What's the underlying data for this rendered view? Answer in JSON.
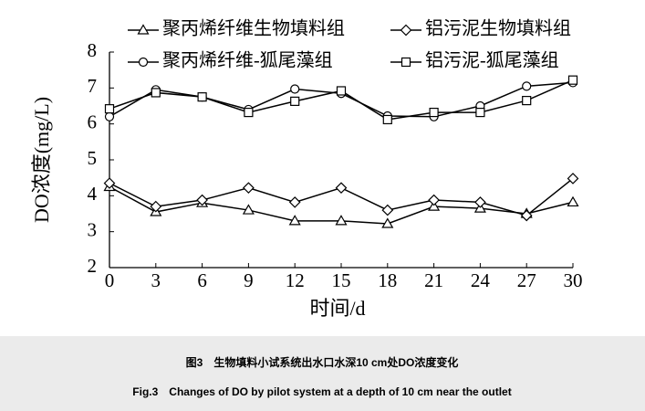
{
  "chart_data": {
    "type": "line",
    "x_label": "时间/d",
    "y_label": "DO浓度(mg/L)",
    "caption_cn": "图3　生物填料小试系统出水口水深10 cm处DO浓度变化",
    "caption_en": "Fig.3　Changes of DO by pilot system at a depth of 10 cm near the outlet",
    "x": [
      0,
      3,
      6,
      9,
      12,
      15,
      18,
      21,
      24,
      27,
      30
    ],
    "xlim": [
      0,
      30
    ],
    "xticks": [
      0,
      3,
      6,
      9,
      12,
      15,
      18,
      21,
      24,
      27,
      30
    ],
    "ylim": [
      2,
      8
    ],
    "yticks": [
      2,
      3,
      4,
      5,
      6,
      7,
      8
    ],
    "series": [
      {
        "name": "聚丙烯纤维生物填料组",
        "color": "#000000",
        "marker": "triangle",
        "values": [
          4.25,
          3.55,
          3.8,
          3.6,
          3.3,
          3.3,
          3.22,
          3.7,
          3.65,
          3.5,
          3.82
        ]
      },
      {
        "name": "铝污泥生物填料组",
        "color": "#000000",
        "marker": "diamond",
        "values": [
          4.35,
          3.7,
          3.88,
          4.22,
          3.82,
          4.22,
          3.6,
          3.88,
          3.82,
          3.45,
          4.48
        ]
      },
      {
        "name": "聚丙烯纤维-狐尾藻组",
        "color": "#000000",
        "marker": "circle",
        "values": [
          6.2,
          6.95,
          6.75,
          6.4,
          6.97,
          6.85,
          6.22,
          6.2,
          6.5,
          7.05,
          7.15
        ]
      },
      {
        "name": "铝污泥-狐尾藻组",
        "color": "#000000",
        "marker": "square",
        "values": [
          6.42,
          6.87,
          6.75,
          6.32,
          6.63,
          6.92,
          6.12,
          6.32,
          6.32,
          6.65,
          7.22
        ]
      }
    ]
  }
}
